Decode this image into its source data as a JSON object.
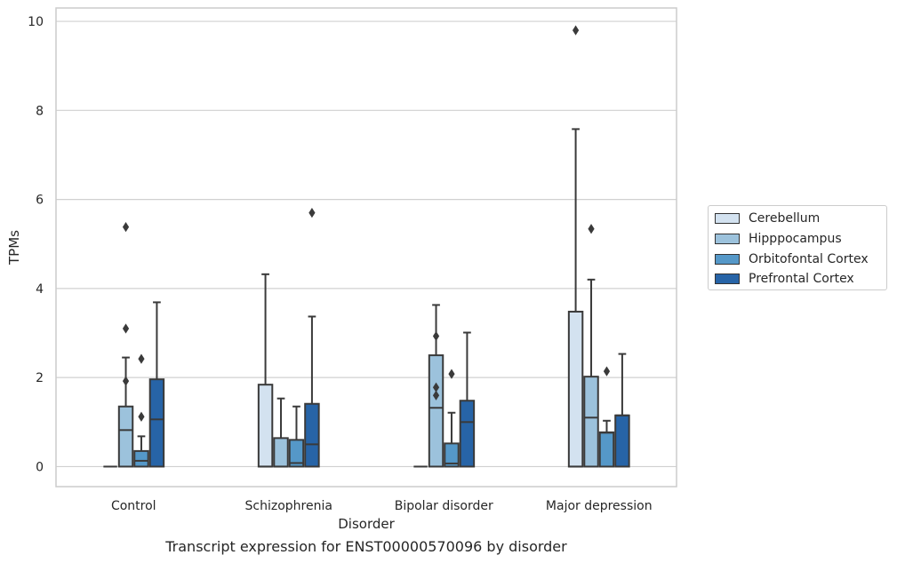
{
  "chart_data": {
    "type": "box",
    "xlabel": "Disorder",
    "ylabel": "TPMs",
    "ylim": [
      -0.45,
      10.3
    ],
    "yticks": [
      0,
      2,
      4,
      6,
      8,
      10
    ],
    "grid": true,
    "legend_position": "right",
    "categories": [
      "Control",
      "Schizophrenia",
      "Bipolar disorder",
      "Major depression"
    ],
    "series": [
      {
        "name": "Cerebellum",
        "color": "#d3e2f0",
        "boxes": [
          {
            "whislo": 0,
            "q1": 0,
            "med": 0,
            "q3": 0,
            "whishi": 0,
            "fliers": []
          },
          {
            "whislo": 0,
            "q1": 0,
            "med": 0,
            "q3": 1.84,
            "whishi": 4.32,
            "fliers": []
          },
          {
            "whislo": 0,
            "q1": 0,
            "med": 0,
            "q3": 0,
            "whishi": 0,
            "fliers": []
          },
          {
            "whislo": 0,
            "q1": 0,
            "med": 0,
            "q3": 3.48,
            "whishi": 7.58,
            "fliers": [
              9.8
            ]
          }
        ]
      },
      {
        "name": "Hipppocampus",
        "color": "#9cc2dc",
        "boxes": [
          {
            "whislo": 0,
            "q1": 0,
            "med": 0.82,
            "q3": 1.35,
            "whishi": 2.45,
            "fliers": [
              1.92,
              3.1,
              5.38
            ]
          },
          {
            "whislo": 0,
            "q1": 0,
            "med": 0,
            "q3": 0.64,
            "whishi": 1.53,
            "fliers": []
          },
          {
            "whislo": 0,
            "q1": 0,
            "med": 1.32,
            "q3": 2.5,
            "whishi": 3.63,
            "fliers": [
              1.6,
              1.78,
              2.93
            ]
          },
          {
            "whislo": 0,
            "q1": 0,
            "med": 1.1,
            "q3": 2.02,
            "whishi": 4.2,
            "fliers": [
              5.34
            ]
          }
        ]
      },
      {
        "name": "Orbitofontal Cortex",
        "color": "#5598c8",
        "boxes": [
          {
            "whislo": 0,
            "q1": 0,
            "med": 0.13,
            "q3": 0.35,
            "whishi": 0.68,
            "fliers": [
              1.12,
              2.42
            ]
          },
          {
            "whislo": 0,
            "q1": 0,
            "med": 0.08,
            "q3": 0.6,
            "whishi": 1.35,
            "fliers": []
          },
          {
            "whislo": 0,
            "q1": 0,
            "med": 0.07,
            "q3": 0.52,
            "whishi": 1.21,
            "fliers": [
              2.08
            ]
          },
          {
            "whislo": 0,
            "q1": 0,
            "med": 0.76,
            "q3": 0.77,
            "whishi": 1.03,
            "fliers": [
              2.14
            ]
          }
        ]
      },
      {
        "name": "Prefrontal Cortex",
        "color": "#2764a7",
        "boxes": [
          {
            "whislo": 0,
            "q1": 0,
            "med": 1.06,
            "q3": 1.96,
            "whishi": 3.69,
            "fliers": []
          },
          {
            "whislo": 0,
            "q1": 0,
            "med": 0.5,
            "q3": 1.41,
            "whishi": 3.37,
            "fliers": [
              5.7
            ]
          },
          {
            "whislo": 0,
            "q1": 0,
            "med": 1.0,
            "q3": 1.48,
            "whishi": 3.01,
            "fliers": []
          },
          {
            "whislo": 0,
            "q1": 0,
            "med": 1.15,
            "q3": 1.15,
            "whishi": 2.53,
            "fliers": []
          }
        ]
      }
    ]
  },
  "caption": "Transcript expression for ENST00000570096 by disorder"
}
